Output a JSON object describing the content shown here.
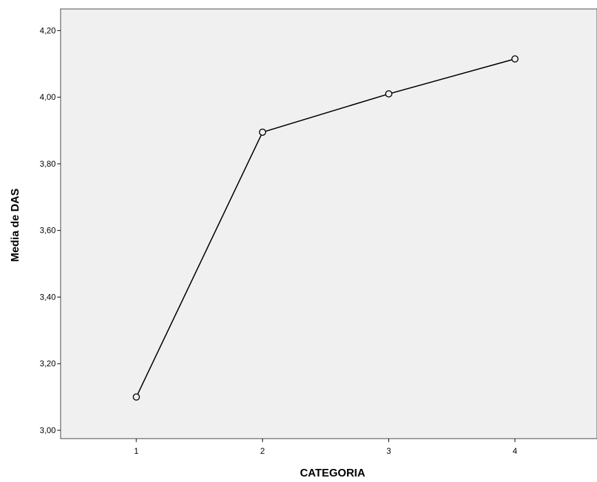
{
  "chart_data": {
    "type": "line",
    "title": "",
    "xlabel": "CATEGORIA",
    "ylabel": "Media de DAS",
    "categories": [
      "1",
      "2",
      "3",
      "4"
    ],
    "series": [
      {
        "values": [
          3.1,
          3.895,
          4.01,
          4.115
        ]
      }
    ],
    "ylim": [
      2.975,
      4.265
    ],
    "xlim": [
      0.4,
      4.65
    ],
    "y_ticks": [
      "3,00",
      "3,20",
      "3,40",
      "3,60",
      "3,80",
      "4,00",
      "4,20"
    ],
    "x_ticks": [
      "1",
      "2",
      "3",
      "4"
    ],
    "grid": false,
    "markers": "open-circle",
    "colors": {
      "plot_background": "#f0f0f0",
      "line": "#000000",
      "frame": "#444444"
    }
  }
}
